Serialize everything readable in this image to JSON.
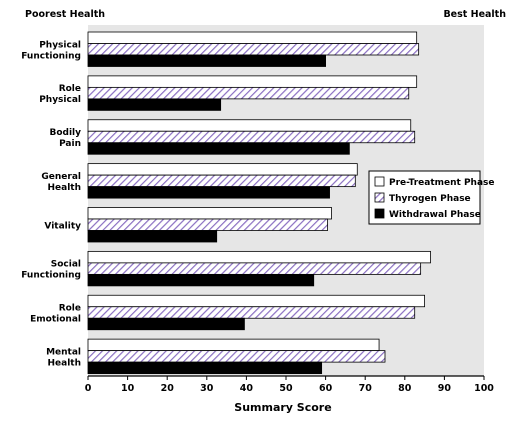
{
  "chart_data": {
    "type": "bar",
    "orientation": "horizontal",
    "left_label": "Poorest Health",
    "right_label": "Best Health",
    "xlabel": "Summary Score",
    "xlim": [
      0,
      100
    ],
    "xticks": [
      0,
      10,
      20,
      30,
      40,
      50,
      60,
      70,
      80,
      90,
      100
    ],
    "grid": false,
    "legend_position": "right",
    "categories": [
      [
        "Physical",
        "Functioning"
      ],
      [
        "Role",
        "Physical"
      ],
      [
        "Bodily",
        "Pain"
      ],
      [
        "General",
        "Health"
      ],
      [
        "Vitality"
      ],
      [
        "Social",
        "Functioning"
      ],
      [
        "Role",
        "Emotional"
      ],
      [
        "Mental",
        "Health"
      ]
    ],
    "series": [
      {
        "name": "Pre-Treatment Phase",
        "fill": "white",
        "values": [
          83,
          83,
          81.5,
          68,
          61.5,
          86.5,
          85,
          73.5
        ]
      },
      {
        "name": "Thyrogen Phase",
        "fill": "hatch",
        "values": [
          83.5,
          81,
          82.5,
          67.5,
          60.5,
          84,
          82.5,
          75
        ]
      },
      {
        "name": "Withdrawal Phase",
        "fill": "black",
        "values": [
          60,
          33.5,
          66,
          61,
          32.5,
          57,
          39.5,
          59
        ]
      }
    ],
    "colors": {
      "plot_background": "#e6e6e6",
      "hatch_stroke": "#8a6fc2",
      "bar_outline": "#000000",
      "black_fill": "#000000",
      "white_fill": "#ffffff"
    }
  }
}
